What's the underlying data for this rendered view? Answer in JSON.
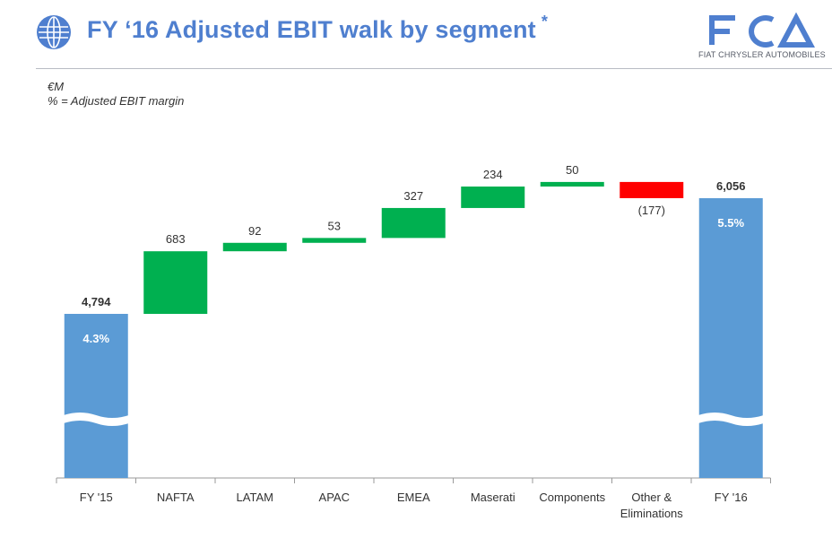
{
  "header": {
    "title": "FY ‘16 Adjusted EBIT walk by segment",
    "title_mark": "*",
    "logo_text": "FCA",
    "logo_subtitle": "FIAT CHRYSLER AUTOMOBILES",
    "icon": "globe-icon",
    "accent_color": "#4f7fcf"
  },
  "units": {
    "currency": "€M",
    "margin_note": "% = Adjusted EBIT margin"
  },
  "chart_data": {
    "type": "waterfall",
    "categories": [
      "FY '15",
      "NAFTA",
      "LATAM",
      "APAC",
      "EMEA",
      "Maserati",
      "Components",
      "Other & Eliminations",
      "FY '16"
    ],
    "values": [
      4794,
      683,
      92,
      53,
      327,
      234,
      50,
      -177,
      6056
    ],
    "kinds": [
      "total",
      "delta",
      "delta",
      "delta",
      "delta",
      "delta",
      "delta",
      "delta",
      "total"
    ],
    "labels": [
      "4,794",
      "683",
      "92",
      "53",
      "327",
      "234",
      "50",
      "(177)",
      "6,056"
    ],
    "margins": [
      "4.3%",
      "",
      "",
      "",
      "",
      "",
      "",
      "",
      "5.5%"
    ],
    "axis_broken": true,
    "colors": {
      "total": "#5b9bd5",
      "increase": "#00b050",
      "decrease": "#ff0000"
    }
  }
}
